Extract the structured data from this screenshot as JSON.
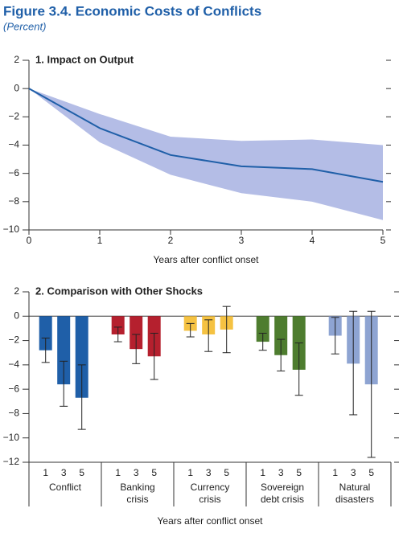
{
  "title": "Figure 3.4.  Economic Costs of Conflicts",
  "subtitle": "(Percent)",
  "chart_data": [
    {
      "type": "line",
      "title": "1. Impact on Output",
      "xlabel": "Years after conflict onset",
      "x": [
        0,
        1,
        2,
        3,
        4,
        5
      ],
      "xlim": [
        0,
        5
      ],
      "xticks": [
        0,
        1,
        2,
        3,
        4,
        5
      ],
      "ylim": [
        -10,
        2
      ],
      "yticks": [
        2,
        0,
        {
          "value": -2,
          "label": "−2"
        },
        {
          "value": -4,
          "label": "−4"
        },
        {
          "value": -6,
          "label": "−6"
        },
        {
          "value": -8,
          "label": "−8"
        },
        {
          "value": -10,
          "label": "−10"
        }
      ],
      "series": [
        {
          "color": "#1f5fa8",
          "values": [
            0,
            -2.8,
            -4.7,
            -5.5,
            -5.7,
            -6.6
          ]
        }
      ],
      "band": {
        "color": "#b4bde6",
        "lower": [
          0,
          -3.8,
          -6.1,
          -7.4,
          -8.0,
          -9.3
        ],
        "upper": [
          0,
          -1.8,
          -3.4,
          -3.7,
          -3.6,
          -4.0
        ]
      }
    },
    {
      "type": "bar",
      "title": "2. Comparison with Other Shocks",
      "xlabel": "Years after conflict onset",
      "ylim": [
        -12,
        2
      ],
      "yticks": [
        2,
        0,
        {
          "value": -2,
          "label": "−2"
        },
        {
          "value": -4,
          "label": "−4"
        },
        {
          "value": -6,
          "label": "−6"
        },
        {
          "value": -8,
          "label": "−8"
        },
        {
          "value": -10,
          "label": "−10"
        },
        {
          "value": -12,
          "label": "−12"
        }
      ],
      "groups": [
        {
          "name": [
            "Conflict"
          ],
          "color": "#1f5fa8",
          "categories": [
            1,
            3,
            5
          ],
          "values": [
            -2.8,
            -5.6,
            -6.7
          ],
          "lower": [
            -3.8,
            -7.4,
            -9.3
          ],
          "upper": [
            -1.8,
            -3.7,
            -4.0
          ]
        },
        {
          "name": [
            "Banking",
            "crisis"
          ],
          "color": "#b5202e",
          "categories": [
            1,
            3,
            5
          ],
          "values": [
            -1.5,
            -2.7,
            -3.3
          ],
          "lower": [
            -2.1,
            -3.9,
            -5.2
          ],
          "upper": [
            -0.9,
            -1.5,
            -1.4
          ]
        },
        {
          "name": [
            "Currency",
            "crisis"
          ],
          "color": "#f5c242",
          "categories": [
            1,
            3,
            5
          ],
          "values": [
            -1.2,
            -1.5,
            -1.1
          ],
          "lower": [
            -1.7,
            -2.9,
            -3.0
          ],
          "upper": [
            -0.6,
            -0.3,
            0.8
          ]
        },
        {
          "name": [
            "Sovereign",
            "debt crisis"
          ],
          "color": "#4e7d2f",
          "categories": [
            1,
            3,
            5
          ],
          "values": [
            -2.1,
            -3.2,
            -4.4
          ],
          "lower": [
            -2.8,
            -4.5,
            -6.5
          ],
          "upper": [
            -1.4,
            -1.9,
            -2.2
          ]
        },
        {
          "name": [
            "Natural",
            "disasters"
          ],
          "color": "#8ea4d2",
          "categories": [
            1,
            3,
            5
          ],
          "values": [
            -1.6,
            -3.9,
            -5.6
          ],
          "lower": [
            -3.1,
            -8.1,
            -11.6
          ],
          "upper": [
            -0.1,
            0.4,
            0.4
          ]
        }
      ]
    }
  ]
}
